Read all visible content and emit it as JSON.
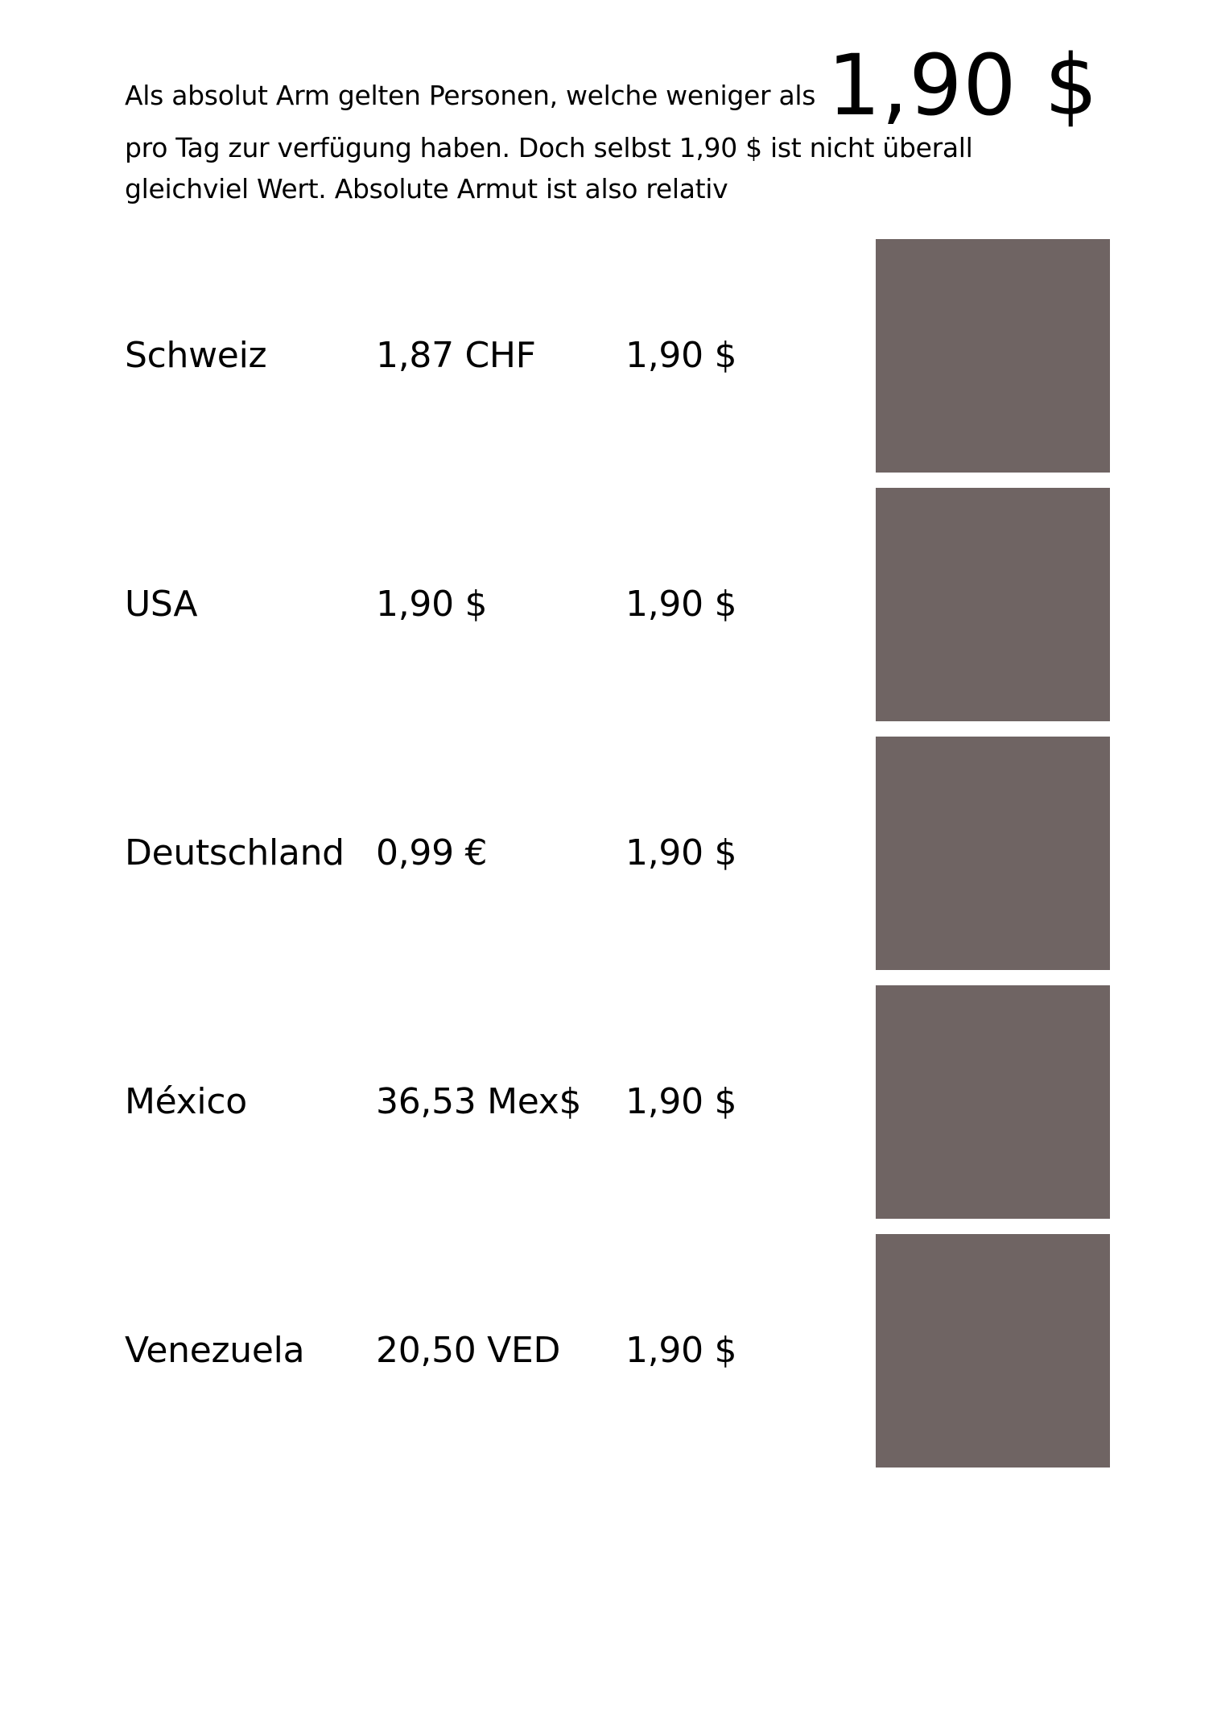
{
  "intro": {
    "lead_text": "Als absolut Arm gelten Personen, welche weniger als",
    "highlight_amount": "1,90 $",
    "line2": "pro Tag zur verfügung haben. Doch selbst 1,90 $ ist nicht überall",
    "line3": "gleichviel Wert.  Absolute Armut ist also relativ"
  },
  "rows": [
    {
      "country": "Schweiz",
      "local_amount": "1,87 CHF",
      "usd_amount": "1,90 $"
    },
    {
      "country": "USA",
      "local_amount": "1,90 $",
      "usd_amount": "1,90 $"
    },
    {
      "country": "Deutschland",
      "local_amount": "0,99 €",
      "usd_amount": "1,90 $"
    },
    {
      "country": "México",
      "local_amount": "36,53 Mex$",
      "usd_amount": "1,90 $"
    },
    {
      "country": "Venezuela",
      "local_amount": "20,50 VED",
      "usd_amount": "1,90 $"
    }
  ],
  "colors": {
    "swatch": "#6f6463",
    "text": "#000000",
    "background": "#ffffff"
  }
}
